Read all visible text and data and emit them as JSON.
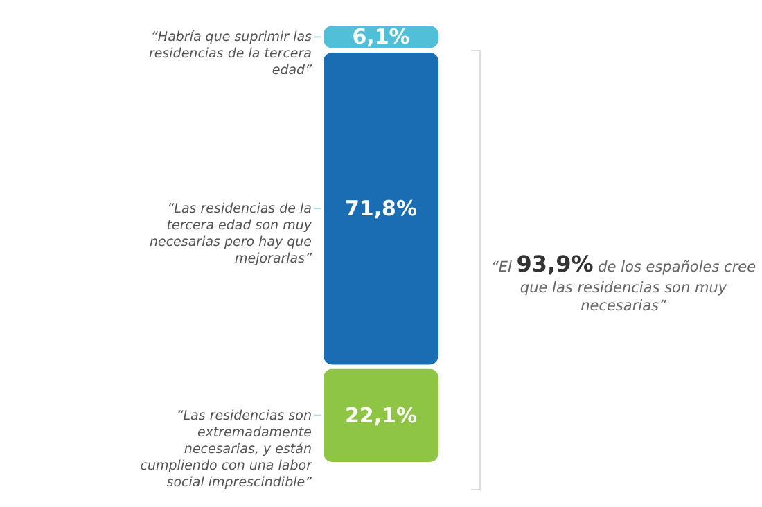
{
  "chart_data": {
    "type": "bar",
    "stacked": true,
    "tick_labels": false,
    "categories": [
      null
    ],
    "series": [
      {
        "name": "“Las residencias son extremadamente necesarias, y están cumpliendo con una labor social imprescindible”",
        "color": "#8ec544",
        "values": [
          22.1
        ],
        "value_labels": [
          "22,1%"
        ]
      },
      {
        "name": "“Las residencias de la tercera edad son muy necesarias pero hay que mejorarlas”",
        "color": "#1a6db3",
        "values": [
          71.8
        ],
        "value_labels": [
          "71,8%"
        ]
      },
      {
        "name": "“Habría que suprimir las residencias de la tercera edad”",
        "color": "#52bfd9",
        "values": [
          6.1
        ],
        "value_labels": [
          "6,1%"
        ]
      }
    ],
    "annotations": [
      "“El 93,9% de los españoles cree que las residencias son muy necesarias”"
    ]
  }
}
